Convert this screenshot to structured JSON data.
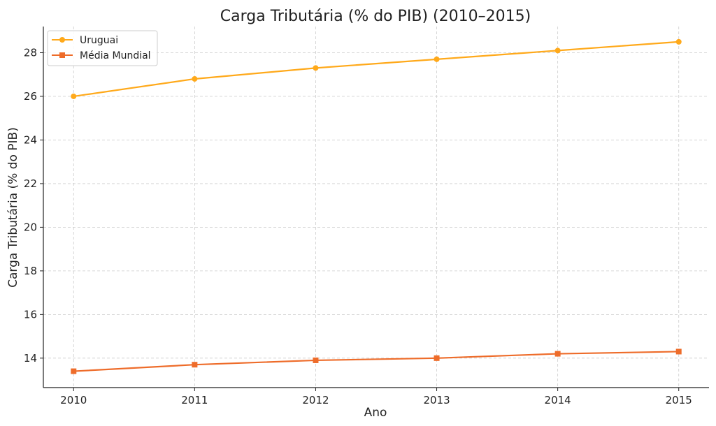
{
  "chart_data": {
    "type": "line",
    "title": "Carga Tributária (% do PIB) (2010–2015)",
    "xlabel": "Ano",
    "ylabel": "Carga Tributária (% do PIB)",
    "x": [
      2010,
      2011,
      2012,
      2013,
      2014,
      2015
    ],
    "x_tick_labels": [
      "2010",
      "2011",
      "2012",
      "2013",
      "2014",
      "2015"
    ],
    "y_ticks": [
      14,
      16,
      18,
      20,
      22,
      24,
      26,
      28
    ],
    "ylim": [
      12.65,
      29.2
    ],
    "xlim": [
      2009.75,
      2015.25
    ],
    "grid": true,
    "legend_position": "top-left",
    "series": [
      {
        "name": "Uruguai",
        "color": "#FFA91A",
        "marker": "circle",
        "values": [
          26.0,
          26.8,
          27.3,
          27.7,
          28.1,
          28.5
        ]
      },
      {
        "name": "Média Mundial",
        "color": "#EE6C2A",
        "marker": "square",
        "values": [
          13.4,
          13.7,
          13.9,
          14.0,
          14.2,
          14.3
        ]
      }
    ]
  }
}
